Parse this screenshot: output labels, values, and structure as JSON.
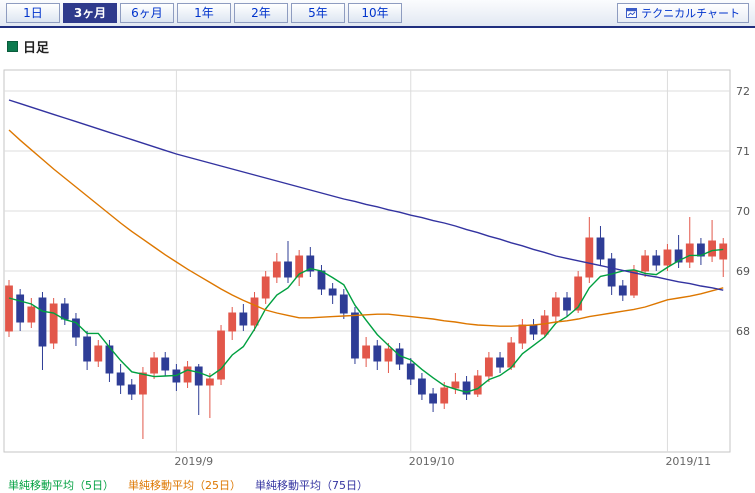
{
  "tabs": {
    "items": [
      {
        "label": "1日",
        "active": false
      },
      {
        "label": "3ヶ月",
        "active": true
      },
      {
        "label": "6ヶ月",
        "active": false
      },
      {
        "label": "1年",
        "active": false
      },
      {
        "label": "2年",
        "active": false
      },
      {
        "label": "5年",
        "active": false
      },
      {
        "label": "10年",
        "active": false
      }
    ],
    "technical_chart_button": "テクニカルチャート"
  },
  "section": {
    "title": "日足"
  },
  "legend": [
    {
      "label": "単純移動平均（5日）",
      "color": "#00a040"
    },
    {
      "label": "単純移動平均（25日）",
      "color": "#dd7700"
    },
    {
      "label": "単純移動平均（75日）",
      "color": "#3333a0"
    }
  ],
  "colors": {
    "tab_active_bg": "#2e3a8c",
    "tabbar_border": "#1f2e7e",
    "link_blue": "#0033cc",
    "up_candle": "#e2574a",
    "down_candle": "#2e3d96",
    "ma5": "#00a040",
    "ma25": "#dd7700",
    "ma75": "#3333a0"
  },
  "chart_data": {
    "type": "candlestick",
    "title": "日足",
    "period": "3ヶ月",
    "grid": true,
    "y_axis": {
      "side": "right",
      "ticks": [
        72,
        71,
        70,
        69,
        68
      ],
      "min": 65.95,
      "max": 72.35
    },
    "x_axis": {
      "labels": [
        {
          "text": "2019/9",
          "index": 15
        },
        {
          "text": "2019/10",
          "index": 36
        },
        {
          "text": "2019/11",
          "index": 59
        }
      ]
    },
    "up_color": "#e2574a",
    "down_color": "#2e3d96",
    "candles": [
      [
        68.0,
        68.85,
        67.9,
        68.75
      ],
      [
        68.6,
        68.7,
        68.0,
        68.15
      ],
      [
        68.15,
        68.55,
        68.05,
        68.4
      ],
      [
        68.55,
        68.65,
        67.35,
        67.75
      ],
      [
        67.8,
        68.55,
        67.7,
        68.45
      ],
      [
        68.45,
        68.55,
        68.1,
        68.2
      ],
      [
        68.2,
        68.3,
        67.75,
        67.9
      ],
      [
        67.9,
        68.0,
        67.35,
        67.5
      ],
      [
        67.5,
        67.85,
        67.4,
        67.75
      ],
      [
        67.75,
        67.85,
        67.15,
        67.3
      ],
      [
        67.3,
        67.45,
        66.95,
        67.1
      ],
      [
        67.1,
        67.2,
        66.85,
        66.95
      ],
      [
        66.95,
        67.4,
        66.2,
        67.3
      ],
      [
        67.3,
        67.65,
        67.2,
        67.55
      ],
      [
        67.55,
        67.65,
        67.25,
        67.35
      ],
      [
        67.35,
        67.45,
        67.0,
        67.15
      ],
      [
        67.15,
        67.5,
        67.05,
        67.4
      ],
      [
        67.4,
        67.45,
        66.6,
        67.1
      ],
      [
        67.1,
        67.3,
        66.55,
        67.2
      ],
      [
        67.2,
        68.1,
        67.1,
        68.0
      ],
      [
        68.0,
        68.4,
        67.85,
        68.3
      ],
      [
        68.3,
        68.45,
        68.0,
        68.1
      ],
      [
        68.1,
        68.65,
        68.0,
        68.55
      ],
      [
        68.55,
        69.0,
        68.45,
        68.9
      ],
      [
        68.9,
        69.3,
        68.8,
        69.15
      ],
      [
        69.15,
        69.5,
        68.8,
        68.9
      ],
      [
        68.9,
        69.35,
        68.75,
        69.25
      ],
      [
        69.25,
        69.4,
        68.9,
        69.0
      ],
      [
        69.0,
        69.1,
        68.6,
        68.7
      ],
      [
        68.7,
        68.8,
        68.45,
        68.6
      ],
      [
        68.6,
        68.7,
        68.2,
        68.3
      ],
      [
        68.3,
        68.4,
        67.45,
        67.55
      ],
      [
        67.55,
        67.9,
        67.4,
        67.75
      ],
      [
        67.75,
        67.85,
        67.35,
        67.5
      ],
      [
        67.5,
        67.8,
        67.3,
        67.7
      ],
      [
        67.7,
        67.8,
        67.35,
        67.45
      ],
      [
        67.45,
        67.55,
        67.1,
        67.2
      ],
      [
        67.2,
        67.3,
        66.85,
        66.95
      ],
      [
        66.95,
        67.05,
        66.65,
        66.8
      ],
      [
        66.8,
        67.15,
        66.7,
        67.05
      ],
      [
        67.05,
        67.3,
        66.95,
        67.15
      ],
      [
        67.15,
        67.25,
        66.85,
        66.95
      ],
      [
        66.95,
        67.35,
        66.9,
        67.25
      ],
      [
        67.25,
        67.65,
        67.15,
        67.55
      ],
      [
        67.55,
        67.65,
        67.3,
        67.4
      ],
      [
        67.4,
        67.9,
        67.35,
        67.8
      ],
      [
        67.8,
        68.2,
        67.7,
        68.1
      ],
      [
        68.1,
        68.2,
        67.85,
        67.95
      ],
      [
        67.95,
        68.35,
        67.9,
        68.25
      ],
      [
        68.25,
        68.65,
        68.15,
        68.55
      ],
      [
        68.55,
        68.65,
        68.25,
        68.35
      ],
      [
        68.35,
        69.0,
        68.3,
        68.9
      ],
      [
        68.9,
        69.9,
        68.8,
        69.55
      ],
      [
        69.55,
        69.75,
        69.1,
        69.2
      ],
      [
        69.2,
        69.3,
        68.6,
        68.75
      ],
      [
        68.75,
        68.85,
        68.5,
        68.6
      ],
      [
        68.6,
        69.1,
        68.55,
        69.0
      ],
      [
        69.0,
        69.35,
        68.9,
        69.25
      ],
      [
        69.25,
        69.35,
        69.0,
        69.1
      ],
      [
        69.1,
        69.45,
        69.0,
        69.35
      ],
      [
        69.35,
        69.6,
        69.05,
        69.15
      ],
      [
        69.15,
        69.9,
        69.05,
        69.45
      ],
      [
        69.45,
        69.55,
        69.1,
        69.25
      ],
      [
        69.25,
        69.85,
        69.15,
        69.5
      ],
      [
        69.2,
        69.55,
        68.9,
        69.45
      ]
    ],
    "overlays": [
      {
        "name": "単純移動平均（5日）",
        "period": 5,
        "color": "#00a040",
        "values": [
          68.55,
          68.5,
          68.45,
          68.33,
          68.3,
          68.19,
          68.14,
          67.96,
          67.96,
          67.73,
          67.51,
          67.32,
          67.28,
          67.24,
          67.25,
          67.26,
          67.35,
          67.31,
          67.24,
          67.37,
          67.6,
          67.74,
          68.03,
          68.37,
          68.6,
          68.72,
          68.95,
          69.04,
          69.0,
          68.89,
          68.77,
          68.43,
          68.18,
          67.94,
          67.76,
          67.59,
          67.52,
          67.36,
          67.22,
          67.09,
          67.03,
          66.98,
          67.04,
          67.19,
          67.26,
          67.39,
          67.62,
          67.76,
          67.9,
          68.13,
          68.24,
          68.4,
          68.72,
          68.91,
          68.95,
          69.0,
          69.02,
          68.96,
          68.94,
          69.06,
          69.17,
          69.26,
          69.26,
          69.34,
          69.36
        ]
      },
      {
        "name": "単純移動平均（25日）",
        "period": 25,
        "color": "#dd7700",
        "values": [
          71.35,
          71.18,
          71.02,
          70.86,
          70.7,
          70.55,
          70.4,
          70.25,
          70.1,
          69.95,
          69.8,
          69.66,
          69.53,
          69.4,
          69.27,
          69.15,
          69.03,
          68.92,
          68.81,
          68.7,
          68.6,
          68.51,
          68.43,
          68.35,
          68.3,
          68.26,
          68.22,
          68.22,
          68.23,
          68.24,
          68.25,
          68.26,
          68.27,
          68.28,
          68.28,
          68.26,
          68.24,
          68.22,
          68.2,
          68.17,
          68.15,
          68.12,
          68.1,
          68.09,
          68.08,
          68.08,
          68.09,
          68.1,
          68.12,
          68.15,
          68.17,
          68.2,
          68.24,
          68.27,
          68.3,
          68.33,
          68.36,
          68.4,
          68.46,
          68.52,
          68.55,
          68.58,
          68.62,
          68.67,
          68.72
        ]
      },
      {
        "name": "単純移動平均（75日）",
        "period": 75,
        "color": "#3333a0",
        "values": [
          71.85,
          71.79,
          71.73,
          71.67,
          71.61,
          71.55,
          71.49,
          71.43,
          71.37,
          71.31,
          71.25,
          71.19,
          71.13,
          71.07,
          71.01,
          70.95,
          70.9,
          70.85,
          70.8,
          70.75,
          70.7,
          70.65,
          70.6,
          70.55,
          70.5,
          70.45,
          70.4,
          70.35,
          70.3,
          70.25,
          70.2,
          70.16,
          70.11,
          70.07,
          70.02,
          69.98,
          69.93,
          69.89,
          69.84,
          69.8,
          69.75,
          69.69,
          69.64,
          69.58,
          69.53,
          69.47,
          69.42,
          69.36,
          69.31,
          69.25,
          69.21,
          69.17,
          69.13,
          69.09,
          69.05,
          69.01,
          68.97,
          68.93,
          68.9,
          68.86,
          68.82,
          68.79,
          68.75,
          68.72,
          68.68
        ]
      }
    ]
  }
}
